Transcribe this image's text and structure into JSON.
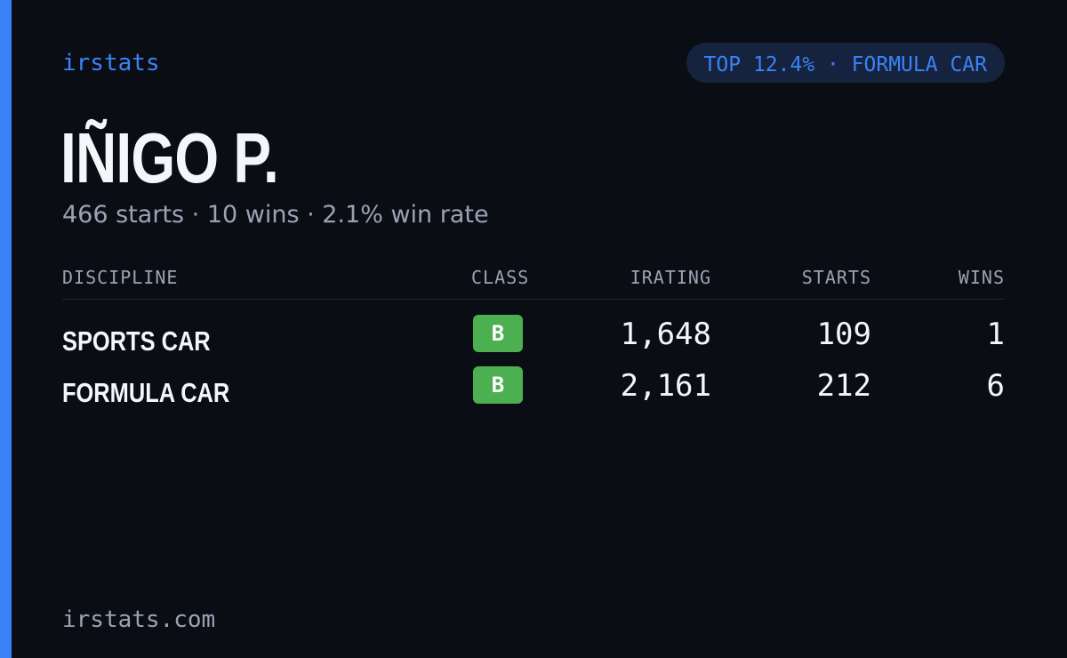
{
  "header": {
    "brand": "irstats",
    "badge": "TOP 12.4% · FORMULA CAR"
  },
  "profile": {
    "name": "IÑIGO P.",
    "summary": "466 starts · 10 wins · 2.1% win rate"
  },
  "table": {
    "columns": [
      "DISCIPLINE",
      "CLASS",
      "IRATING",
      "STARTS",
      "WINS"
    ],
    "rows": [
      [
        "SPORTS CAR",
        "B",
        "1,648",
        "109",
        "1"
      ],
      [
        "FORMULA CAR",
        "B",
        "2,161",
        "212",
        "6"
      ]
    ]
  },
  "footer": {
    "site": "irstats.com"
  }
}
